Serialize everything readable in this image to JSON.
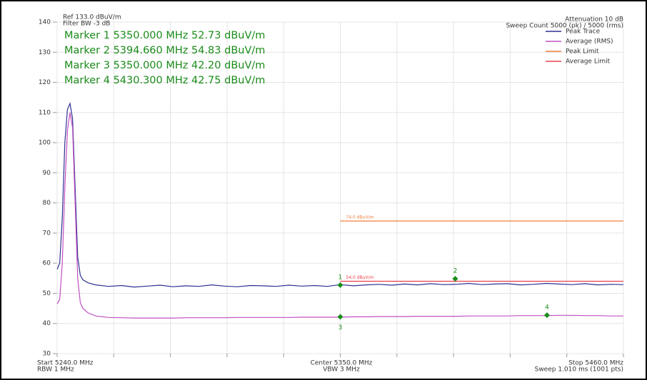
{
  "chart_data": {
    "type": "line",
    "header_left": [
      "Ref 133.0 dBuV/m",
      "Filter BW -3 dB"
    ],
    "header_right": [
      "Attenuation 10 dB",
      "Sweep Count 5000 (pk) / 5000 (rms)"
    ],
    "footer_left": [
      "Start 5240.0 MHz",
      "RBW 1 MHz"
    ],
    "footer_center": [
      "Center 5350.0 MHz",
      "VBW 3 MHz"
    ],
    "footer_right": [
      "Stop 5460.0 MHz",
      "Sweep 1.010 ms (1001 pts)"
    ],
    "xlim": [
      5240,
      5460
    ],
    "xticks": [
      5240,
      5262,
      5284,
      5306,
      5328,
      5350,
      5372,
      5394,
      5416,
      5438,
      5460
    ],
    "ylim": [
      30,
      140
    ],
    "yticks": [
      30,
      40,
      50,
      60,
      70,
      80,
      90,
      100,
      110,
      120,
      130,
      140
    ],
    "grid": true,
    "x": [
      5240,
      5241,
      5242,
      5243,
      5244,
      5245,
      5246,
      5247,
      5248,
      5249,
      5250,
      5252,
      5255,
      5260,
      5265,
      5270,
      5275,
      5280,
      5285,
      5290,
      5295,
      5300,
      5305,
      5310,
      5315,
      5320,
      5325,
      5330,
      5335,
      5340,
      5345,
      5350,
      5355,
      5360,
      5365,
      5370,
      5375,
      5380,
      5385,
      5390,
      5395,
      5400,
      5405,
      5410,
      5415,
      5420,
      5425,
      5430,
      5435,
      5440,
      5445,
      5450,
      5455,
      5460
    ],
    "series": [
      {
        "name": "Peak Trace",
        "color": "#2e3192",
        "values": [
          58,
          60,
          75,
          100,
          111,
          113,
          108,
          85,
          62,
          56,
          54.5,
          53.5,
          52.8,
          52.3,
          52.6,
          52.1,
          52.4,
          52.7,
          52.2,
          52.5,
          52.3,
          52.8,
          52.4,
          52.2,
          52.6,
          52.5,
          52.3,
          52.7,
          52.4,
          52.6,
          52.3,
          52.9,
          52.5,
          52.8,
          53,
          52.7,
          53.1,
          52.8,
          53.2,
          52.9,
          53,
          53.3,
          52.9,
          53.1,
          53.2,
          52.8,
          53,
          53.3,
          53.1,
          52.9,
          53.2,
          52.8,
          53,
          52.9
        ]
      },
      {
        "name": "Average (RMS)",
        "color": "#c050c0",
        "values": [
          46.5,
          48,
          60,
          85,
          104,
          110,
          105,
          80,
          55,
          47,
          45,
          43.5,
          42.5,
          42,
          41.9,
          41.8,
          41.8,
          41.8,
          41.8,
          41.9,
          41.9,
          41.9,
          41.9,
          42,
          42,
          42,
          42,
          42,
          42.1,
          42.1,
          42.1,
          42.1,
          42.2,
          42.2,
          42.3,
          42.3,
          42.3,
          42.4,
          42.4,
          42.4,
          42.4,
          42.5,
          42.5,
          42.5,
          42.5,
          42.6,
          42.6,
          42.6,
          42.7,
          42.7,
          42.6,
          42.6,
          42.5,
          42.5
        ]
      },
      {
        "name": "Peak Limit",
        "color": "#f0803c",
        "x": [
          5350,
          5460
        ],
        "values": [
          74,
          74
        ],
        "label": "74.0 dBuV/m"
      },
      {
        "name": "Average Limit",
        "color": "#e8404a",
        "x": [
          5350,
          5460
        ],
        "values": [
          54,
          54
        ],
        "label": "54.0 dBuV/m"
      }
    ],
    "markers": [
      {
        "label": "1",
        "text": "Marker 1 5350.000 MHz 52.73 dBuV/m",
        "x": 5350,
        "y": 52.73
      },
      {
        "label": "2",
        "text": "Marker 2 5394.660 MHz 54.83 dBuV/m",
        "x": 5394.66,
        "y": 54.83
      },
      {
        "label": "3",
        "text": "Marker 3 5350.000 MHz 42.20 dBuV/m",
        "x": 5350,
        "y": 42.2
      },
      {
        "label": "4",
        "text": "Marker 4 5430.300 MHz 42.75 dBuV/m",
        "x": 5430.3,
        "y": 42.75
      }
    ],
    "marker_color": "#1a8c1a"
  }
}
